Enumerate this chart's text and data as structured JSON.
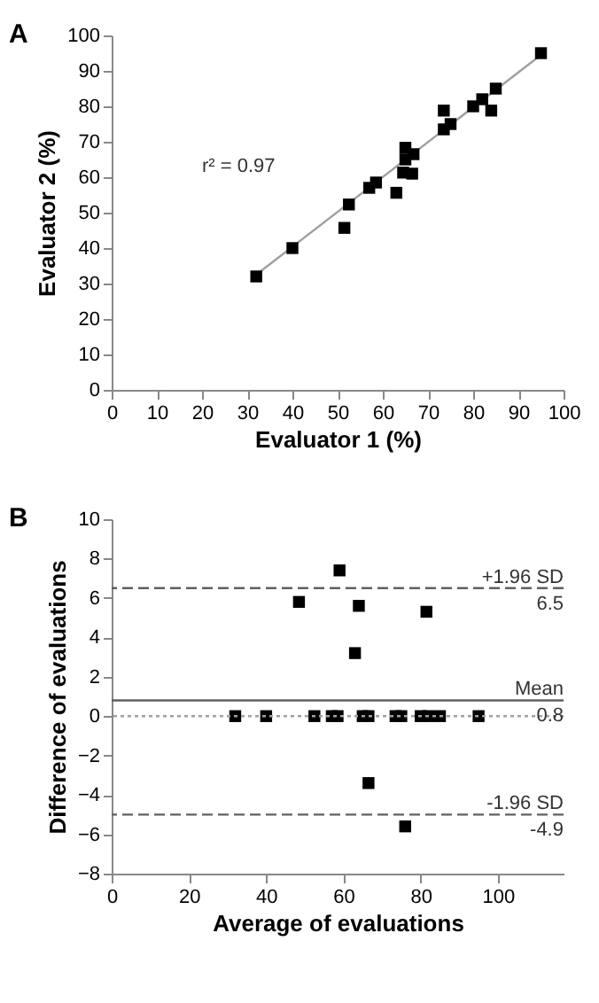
{
  "chart_data": [
    {
      "type": "scatter",
      "xlabel": "Evaluator 1 (%)",
      "ylabel": "Evaluator 2 (%)",
      "marker": "square",
      "grid": false,
      "legend": false,
      "xlim": [
        0,
        100
      ],
      "ylim": [
        0,
        100
      ],
      "xticks": [
        0,
        10,
        20,
        30,
        40,
        50,
        60,
        70,
        80,
        90,
        100
      ],
      "yticks": [
        0,
        10,
        20,
        30,
        40,
        50,
        60,
        70,
        80,
        90,
        100
      ],
      "annotations": [
        "A",
        "r² = 0.97"
      ],
      "series": [
        {
          "color": "#000000",
          "x": [
            32,
            40,
            51.5,
            52.5,
            57,
            58.5,
            63,
            64.5,
            65,
            65,
            66.5,
            66.8,
            73.5,
            73.5,
            75,
            80,
            82,
            84,
            85,
            95
          ],
          "values": [
            32,
            40,
            45.7,
            52.3,
            57,
            58.5,
            55.6,
            61.3,
            65,
            68.3,
            61,
            66.5,
            73.5,
            78.8,
            75,
            80,
            82,
            78.8,
            85,
            95
          ]
        },
        {
          "type": "line",
          "marker": "none",
          "color": "#a0a0a0",
          "x": [
            32,
            95
          ],
          "values": [
            32.5,
            94.5
          ]
        }
      ]
    },
    {
      "type": "scatter",
      "xlabel": "Average of evaluations",
      "ylabel": "Difference of evaluations",
      "marker": "square",
      "grid": false,
      "legend": false,
      "xlim": [
        0,
        117
      ],
      "ylim": [
        -8,
        10
      ],
      "xticks": [
        0,
        20,
        40,
        60,
        80,
        100
      ],
      "yticks": [
        -8,
        -6,
        -4,
        -2,
        0,
        2,
        4,
        6,
        8,
        10
      ],
      "annotations": [
        "B",
        {
          "text": "6.5",
          "y": 6.5
        },
        {
          "text": "0.8",
          "y": 0.8
        },
        {
          "text": "-4.9",
          "y": -5.0
        }
      ],
      "ref_lines": [
        {
          "axis": "y",
          "value": 6.5,
          "label": "+1.96 SD",
          "color": "#606060",
          "line_style": "dashed"
        },
        {
          "axis": "y",
          "value": 0.8,
          "label": "Mean",
          "color": "#606060",
          "line_style": "solid"
        },
        {
          "axis": "y",
          "value": 0,
          "label": null,
          "color": "#a0a0a0",
          "line_style": "dotted"
        },
        {
          "axis": "y",
          "value": -5.0,
          "label": "-1.96 SD",
          "color": "#606060",
          "line_style": "dashed"
        }
      ],
      "series": [
        {
          "color": "#000000",
          "x": [
            32,
            40,
            52.5,
            57,
            58.5,
            65,
            66.5,
            73.5,
            75,
            80,
            82,
            85,
            95,
            48.5,
            59,
            63,
            64,
            66.5,
            76,
            81.5
          ],
          "values": [
            0,
            0,
            0,
            0,
            0,
            0,
            0,
            0,
            0,
            0,
            0,
            0,
            0,
            5.8,
            7.4,
            3.2,
            5.6,
            -3.4,
            -5.6,
            5.3
          ]
        }
      ]
    }
  ]
}
